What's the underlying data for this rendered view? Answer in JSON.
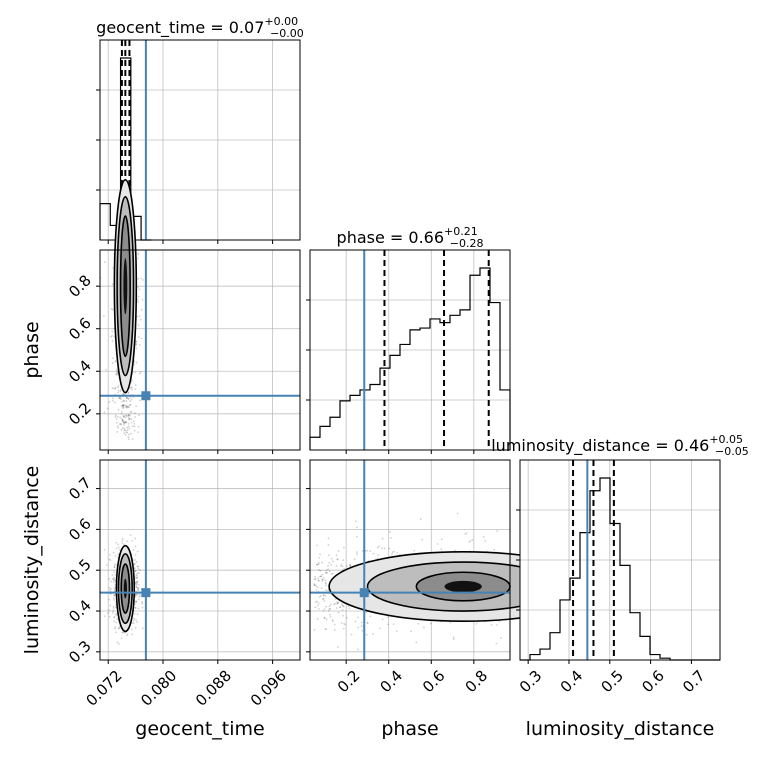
{
  "colors": {
    "truth": "#4682b4",
    "hist": "#000000",
    "grid": "#b0b0b0"
  },
  "titles": [
    {
      "name": "geocent_time",
      "value": "0.07",
      "plus": "+0.00",
      "minus": "−0.00"
    },
    {
      "name": "phase",
      "value": "0.66",
      "plus": "+0.21",
      "minus": "−0.28"
    },
    {
      "name": "luminosity_distance",
      "value": "0.46",
      "plus": "+0.05",
      "minus": "−0.05"
    }
  ],
  "axis_labels": {
    "x": [
      "geocent_time",
      "phase",
      "luminosity_distance"
    ],
    "y": [
      "phase",
      "luminosity_distance"
    ]
  },
  "chart_data": {
    "type": "corner",
    "parameters": [
      "geocent_time",
      "phase",
      "luminosity_distance"
    ],
    "ranges": {
      "geocent_time": [
        0.0708,
        0.1
      ],
      "phase": [
        0.03,
        0.97
      ],
      "luminosity_distance": [
        0.28,
        0.77
      ]
    },
    "ticks": {
      "geocent_time": [
        {
          "v": 0.072,
          "label": "0.072"
        },
        {
          "v": 0.08,
          "label": "0.080"
        },
        {
          "v": 0.088,
          "label": "0.088"
        },
        {
          "v": 0.096,
          "label": "0.096"
        }
      ],
      "phase": [
        {
          "v": 0.2,
          "label": "0.2"
        },
        {
          "v": 0.4,
          "label": "0.4"
        },
        {
          "v": 0.6,
          "label": "0.6"
        },
        {
          "v": 0.8,
          "label": "0.8"
        }
      ],
      "luminosity_distance": [
        {
          "v": 0.3,
          "label": "0.3"
        },
        {
          "v": 0.4,
          "label": "0.4"
        },
        {
          "v": 0.5,
          "label": "0.5"
        },
        {
          "v": 0.6,
          "label": "0.6"
        },
        {
          "v": 0.7,
          "label": "0.7"
        }
      ]
    },
    "truths": {
      "geocent_time": 0.0775,
      "phase": 0.285,
      "luminosity_distance": 0.445
    },
    "quantiles": {
      "geocent_time": [
        0.074,
        0.0745,
        0.0751
      ],
      "phase": [
        0.38,
        0.66,
        0.87
      ],
      "luminosity_distance": [
        0.41,
        0.46,
        0.51
      ]
    },
    "histograms": {
      "geocent_time": {
        "edges": [
          0.0708,
          0.0723,
          0.0738,
          0.0753,
          0.0768,
          0.0783
        ],
        "counts": [
          0.2,
          0.08,
          1.0,
          0.13,
          0.0
        ]
      },
      "phase": {
        "edges": [
          0.03,
          0.077,
          0.124,
          0.171,
          0.218,
          0.265,
          0.312,
          0.359,
          0.406,
          0.453,
          0.5,
          0.547,
          0.594,
          0.641,
          0.688,
          0.735,
          0.782,
          0.829,
          0.876,
          0.923,
          0.97
        ],
        "counts": [
          0.07,
          0.13,
          0.18,
          0.27,
          0.3,
          0.33,
          0.36,
          0.45,
          0.52,
          0.58,
          0.66,
          0.67,
          0.72,
          0.7,
          0.74,
          0.77,
          0.96,
          1.0,
          0.81,
          0.33
        ]
      },
      "luminosity_distance": {
        "edges": [
          0.28,
          0.3045,
          0.329,
          0.3535,
          0.378,
          0.4025,
          0.427,
          0.4515,
          0.476,
          0.5005,
          0.525,
          0.5495,
          0.574,
          0.5985,
          0.623,
          0.6475,
          0.672,
          0.77
        ],
        "counts": [
          0.0,
          0.03,
          0.06,
          0.15,
          0.33,
          0.45,
          0.7,
          0.93,
          1.0,
          0.75,
          0.52,
          0.26,
          0.13,
          0.03,
          0.01,
          0.0,
          0.0
        ]
      }
    },
    "scatter_2d": [
      {
        "x": "geocent_time",
        "y": "phase",
        "center": [
          0.0745,
          0.8
        ],
        "spread": [
          0.0009,
          0.28
        ],
        "levels": [
          [
            0.0007,
            0.33
          ],
          [
            0.0012,
            0.42
          ],
          [
            0.0016,
            0.5
          ]
        ]
      },
      {
        "x": "geocent_time",
        "y": "luminosity_distance",
        "center": [
          0.0745,
          0.455
        ],
        "spread": [
          0.0009,
          0.045
        ],
        "levels": [
          [
            0.0006,
            0.06
          ],
          [
            0.001,
            0.085
          ],
          [
            0.0013,
            0.105
          ]
        ]
      },
      {
        "x": "phase",
        "y": "luminosity_distance",
        "center": [
          0.75,
          0.46
        ],
        "spread": [
          0.28,
          0.05
        ],
        "levels": [
          [
            0.22,
            0.035
          ],
          [
            0.45,
            0.06
          ],
          [
            0.63,
            0.085
          ]
        ]
      }
    ]
  }
}
